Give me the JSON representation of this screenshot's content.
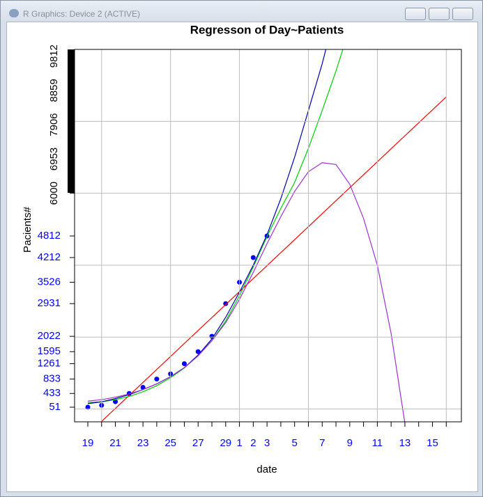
{
  "window_title": "R Graphics: Device 2 (ACTIVE)",
  "chart_data": {
    "type": "line",
    "title": "Regresson of Day~Patients",
    "xlabel": "date",
    "ylabel": "Pacients#",
    "categories": [
      "19",
      null,
      "21",
      null,
      "23",
      null,
      "25",
      null,
      "27",
      null,
      "29",
      "1",
      "2",
      "3",
      null,
      "5",
      null,
      "7",
      null,
      "9",
      null,
      "11",
      null,
      "13",
      null,
      "15",
      null
    ],
    "ylim": [
      -356,
      10000
    ],
    "yticks": [
      51,
      433,
      833,
      1261,
      1595,
      2022,
      2931,
      3526,
      4212,
      4812
    ],
    "ytick_color": "#0000ff",
    "y_extra_ticks": [
      6000,
      6953,
      7906,
      8859,
      9812
    ],
    "y_extra_tick_color": "#000000",
    "xtick_color": "#0000ff",
    "grid": true,
    "ygrid": [
      0,
      2000,
      4000,
      6000,
      8000,
      10000
    ],
    "series": [
      {
        "style": "points",
        "color": "#0000ff",
        "values": [
          51,
          104,
          204,
          433,
          602,
          833,
          977,
          1261,
          1595,
          2022,
          2931,
          3526,
          4212,
          4812,
          null,
          null,
          null,
          null,
          null,
          null,
          null,
          null,
          null,
          null,
          null,
          null,
          null
        ]
      },
      {
        "style": "line",
        "color": "#ff0000",
        "values": [
          -705,
          -344,
          17,
          378,
          739,
          1100,
          1461,
          1822,
          2183,
          2544,
          2905,
          3266,
          3627,
          3988,
          4349,
          4710,
          5071,
          5432,
          5793,
          6154,
          6515,
          6876,
          7237,
          7598,
          7959,
          8320,
          8681
        ]
      },
      {
        "style": "line",
        "color": "#00cc00",
        "values": [
          180,
          200,
          260,
          350,
          480,
          650,
          870,
          1140,
          1480,
          1900,
          2450,
          3150,
          3950,
          4800,
          5580,
          6300,
          7250,
          8300,
          9400,
          10600,
          null,
          null,
          null,
          null,
          null,
          null,
          null
        ]
      },
      {
        "style": "line",
        "color": "#0000aa",
        "values": [
          150,
          200,
          290,
          400,
          540,
          700,
          900,
          1150,
          1500,
          1950,
          2550,
          3250,
          4000,
          4850,
          5850,
          7000,
          8300,
          9600,
          11100,
          null,
          null,
          null,
          null,
          null,
          null,
          null,
          null
        ]
      },
      {
        "style": "line",
        "color": "#9933cc",
        "values": [
          220,
          260,
          330,
          420,
          540,
          700,
          900,
          1150,
          1480,
          1900,
          2400,
          3050,
          3800,
          4600,
          5350,
          6050,
          6600,
          6850,
          6800,
          6250,
          5300,
          4000,
          2100,
          -400,
          null,
          null,
          null
        ]
      }
    ]
  }
}
